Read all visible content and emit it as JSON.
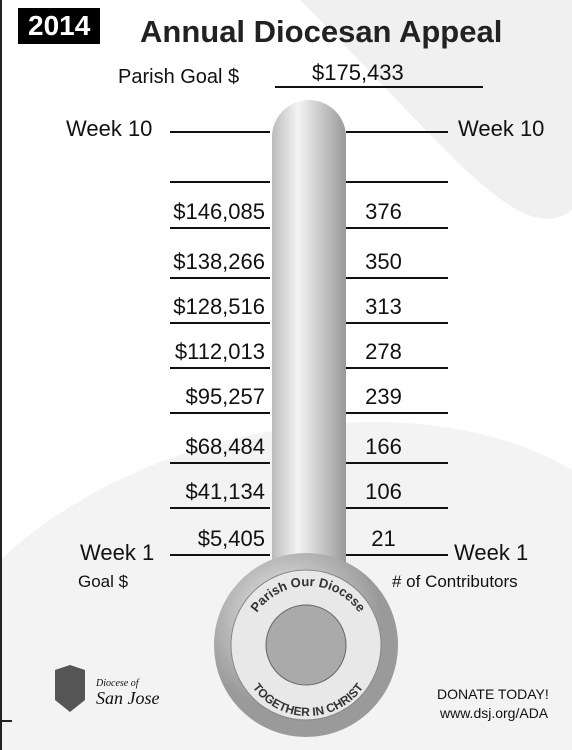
{
  "header": {
    "year": "2014",
    "title": "Annual Diocesan Appeal",
    "goal_label": "Parish Goal $",
    "goal_value": "$175,433"
  },
  "top": {
    "left": "Week 10",
    "right": "Week 10"
  },
  "rows": [
    {
      "amount": "$146,085",
      "contributors": "376"
    },
    {
      "amount": "$138,266",
      "contributors": "350"
    },
    {
      "amount": "$128,516",
      "contributors": "313"
    },
    {
      "amount": "$112,013",
      "contributors": "278"
    },
    {
      "amount": "$95,257",
      "contributors": "239"
    },
    {
      "amount": "$68,484",
      "contributors": "166"
    },
    {
      "amount": "$41,134",
      "contributors": "106"
    },
    {
      "amount": "$5,405",
      "contributors": "21"
    }
  ],
  "bottom": {
    "left": "Week 1",
    "right": "Week 1",
    "left_caption": "Goal $",
    "right_caption": "# of Contributors"
  },
  "seal": {
    "top": "Parish Our Diocese",
    "bottom": "TOGETHER IN CHRIST"
  },
  "logo": {
    "line1": "Diocese of",
    "line2": "San Jose"
  },
  "footer": {
    "cta": "DONATE TODAY!",
    "url": "www.dsj.org/ADA"
  }
}
